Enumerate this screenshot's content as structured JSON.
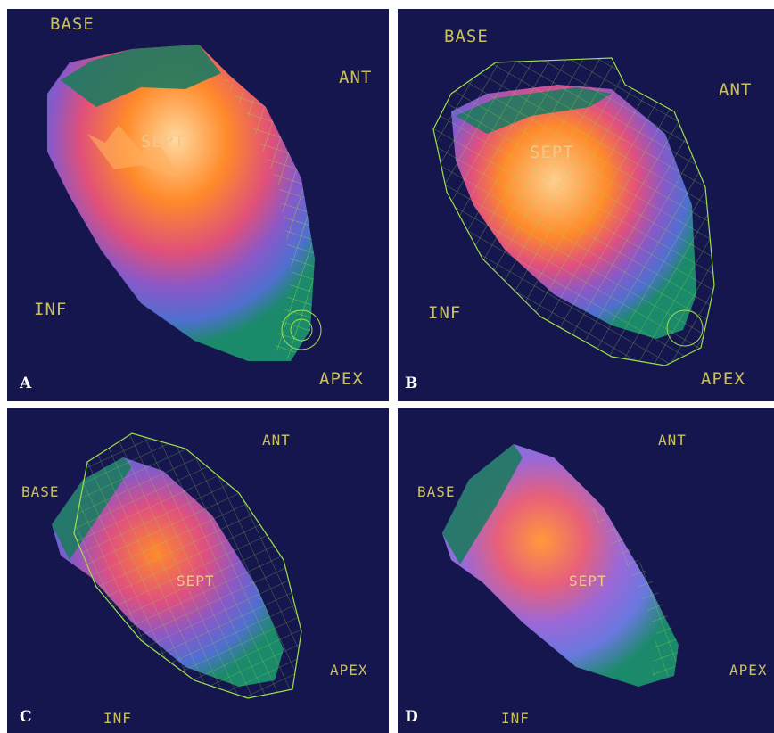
{
  "panels": [
    {
      "letter": "A",
      "labels": {
        "base": "BASE",
        "ant": "ANT",
        "sept": "SEPT",
        "inf": "INF",
        "apex": "APEX"
      }
    },
    {
      "letter": "B",
      "labels": {
        "base": "BASE",
        "ant": "ANT",
        "sept": "SEPT",
        "inf": "INF",
        "apex": "APEX"
      }
    },
    {
      "letter": "C",
      "labels": {
        "base": "BASE",
        "ant": "ANT",
        "sept": "SEPT",
        "inf": "INF",
        "apex": "APEX"
      }
    },
    {
      "letter": "D",
      "labels": {
        "base": "BASE",
        "ant": "ANT",
        "sept": "SEPT",
        "inf": "INF",
        "apex": "APEX"
      }
    }
  ],
  "colors": {
    "background": "#16164f",
    "wireframe": "#9ee04a",
    "label": "#c8c060",
    "sept_label": "#f2c88a",
    "divider": "#ffffff"
  }
}
